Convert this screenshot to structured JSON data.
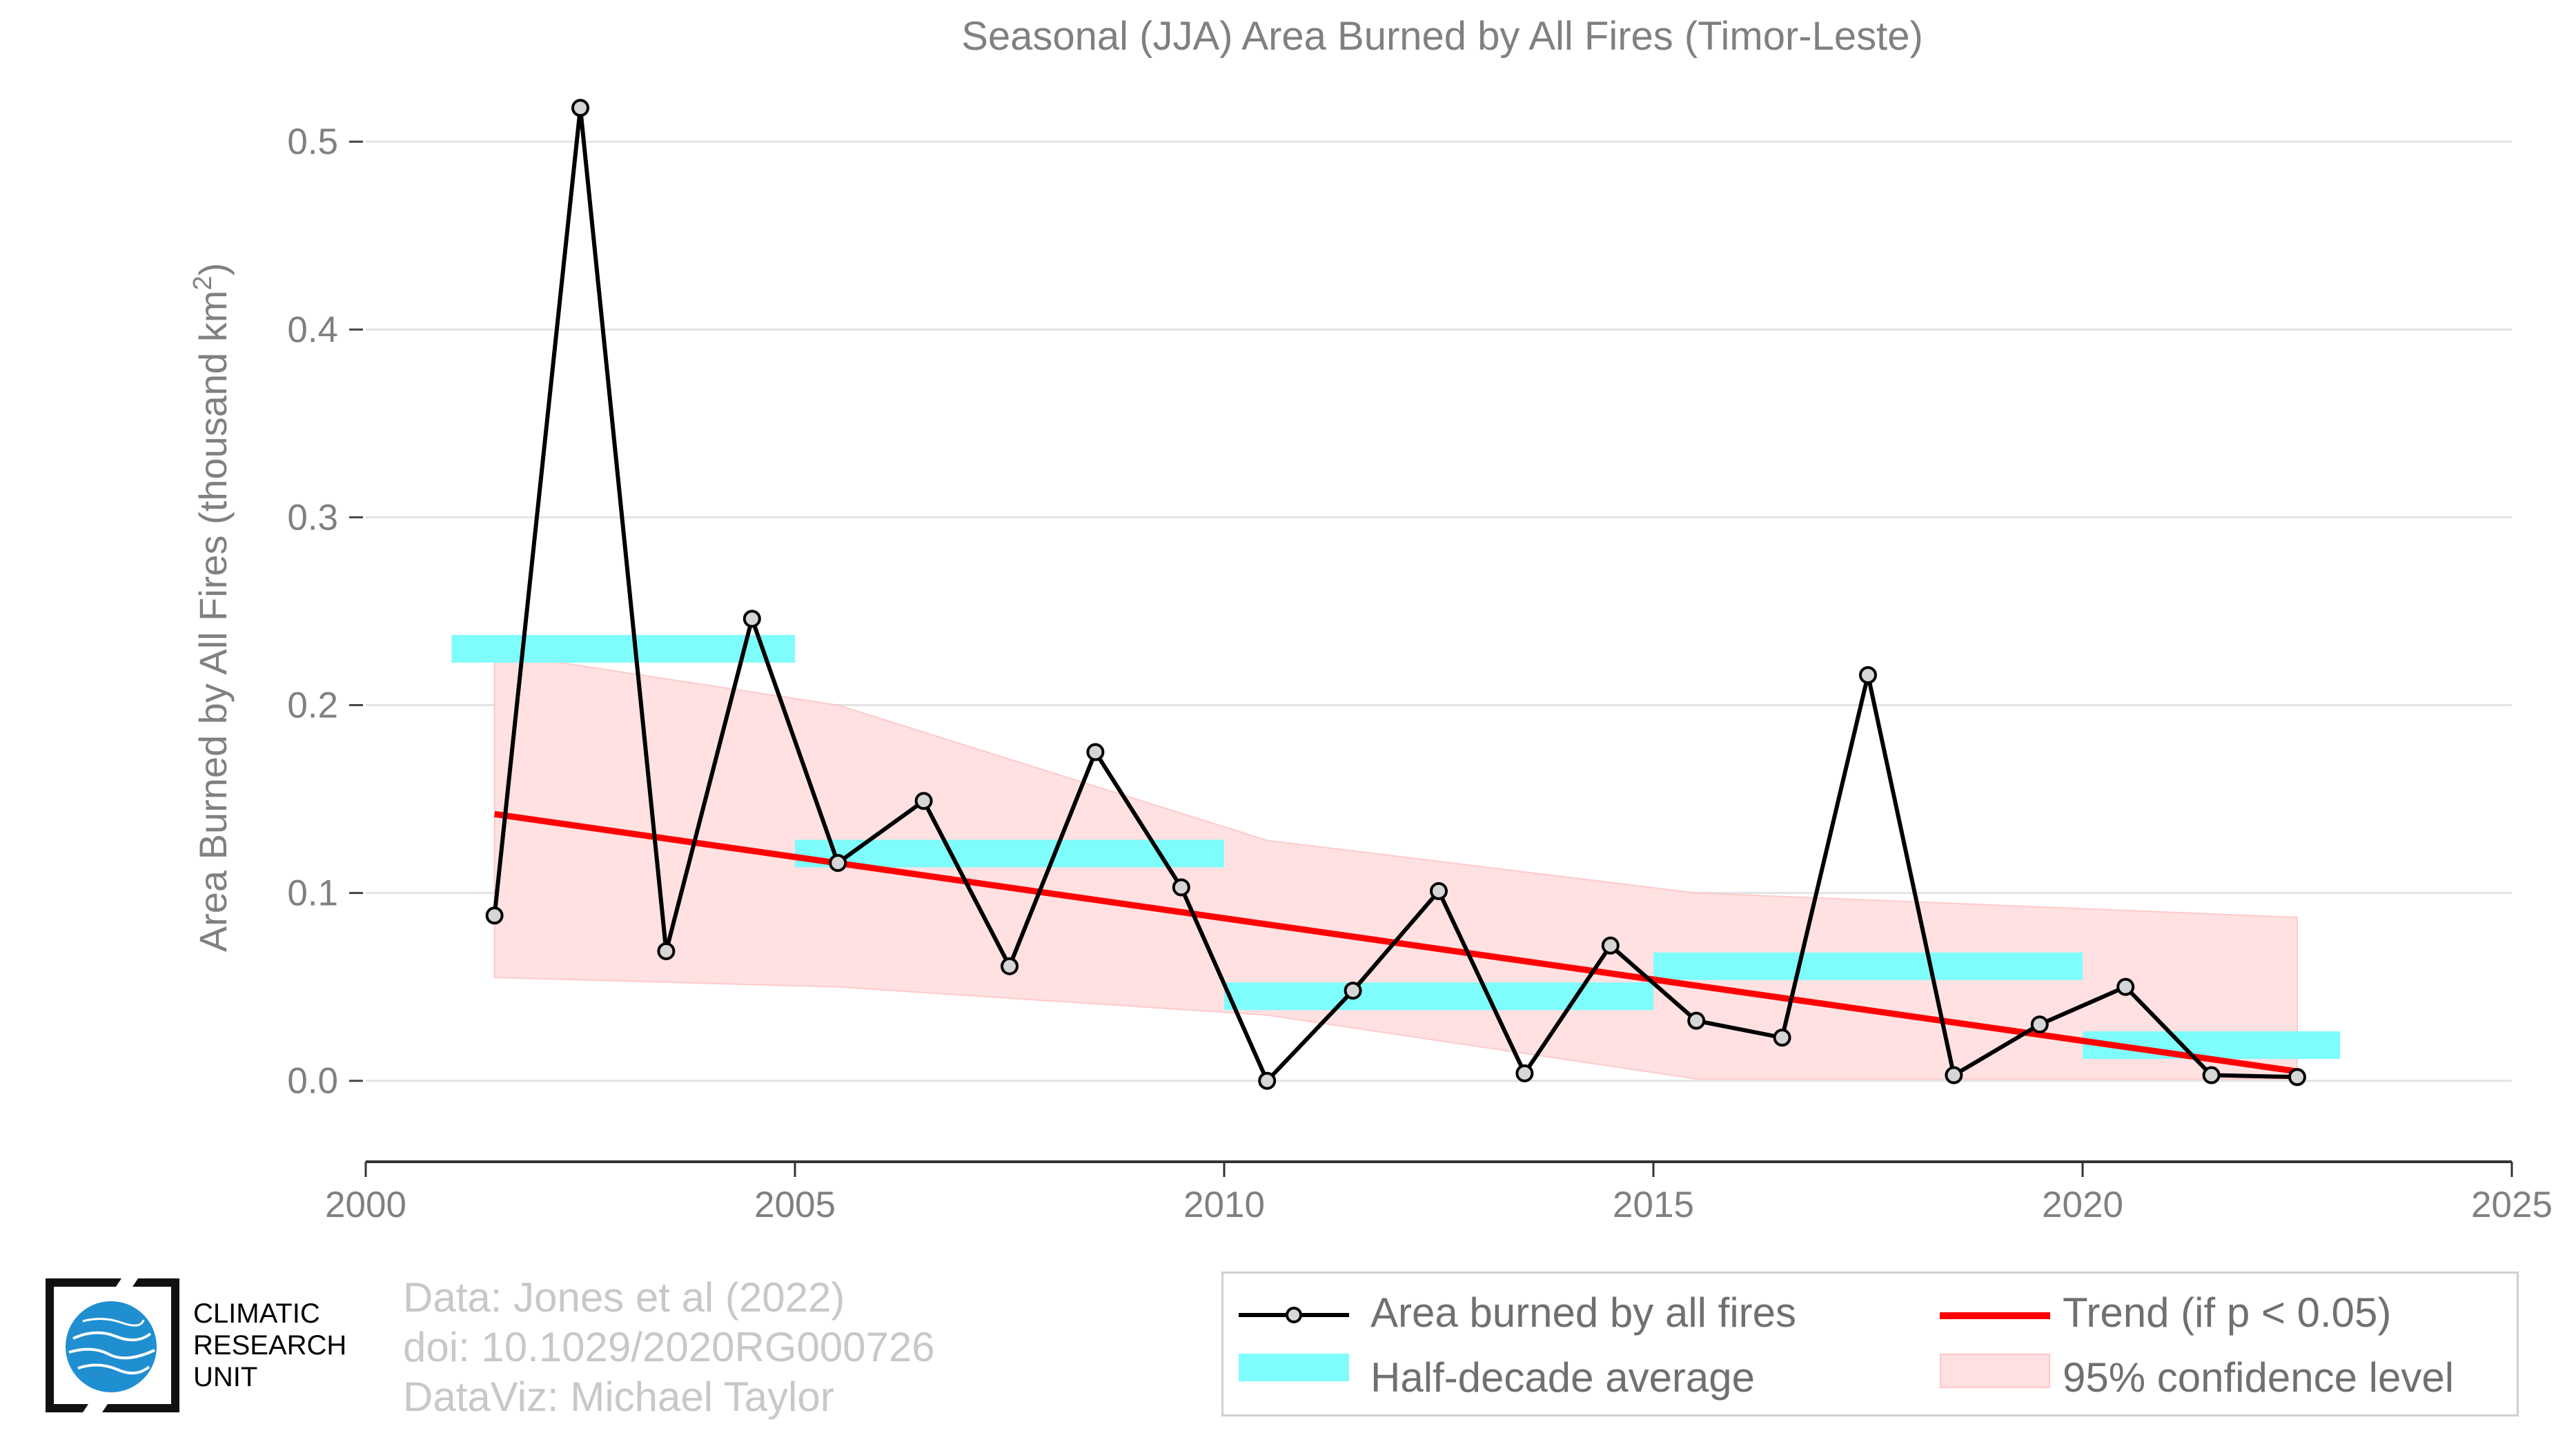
{
  "chart_data": {
    "type": "line",
    "title": "Seasonal (JJA) Area Burned by All Fires (Timor-Leste)",
    "ylabel": "Area Burned by All Fires (thousand km",
    "ylabel_sup": "2",
    "ylabel_close": ")",
    "xlabel": "",
    "xlim": [
      2000,
      2025
    ],
    "ylim": [
      -0.042,
      0.535
    ],
    "xticks": [
      2000,
      2005,
      2010,
      2015,
      2020,
      2025
    ],
    "xtick_labels": [
      "2000",
      "2005",
      "2010",
      "2015",
      "2020",
      "2025"
    ],
    "yticks": [
      0.0,
      0.1,
      0.2,
      0.3,
      0.4,
      0.5
    ],
    "ytick_labels": [
      "0.0",
      "0.1",
      "0.2",
      "0.3",
      "0.4",
      "0.5"
    ],
    "grid": "horizontal",
    "legend_position": "bottom-right",
    "series": [
      {
        "name": "Area burned by all fires",
        "color": "#000000",
        "x": [
          2001.5,
          2002.5,
          2003.5,
          2004.5,
          2005.5,
          2006.5,
          2007.5,
          2008.5,
          2009.5,
          2010.5,
          2011.5,
          2012.5,
          2013.5,
          2014.5,
          2015.5,
          2016.5,
          2017.5,
          2018.5,
          2019.5,
          2020.5,
          2021.5,
          2022.5
        ],
        "values": [
          0.088,
          0.518,
          0.069,
          0.246,
          0.116,
          0.149,
          0.061,
          0.175,
          0.103,
          0.0,
          0.048,
          0.101,
          0.004,
          0.072,
          0.032,
          0.023,
          0.216,
          0.003,
          0.03,
          0.05,
          0.003,
          0.002
        ]
      },
      {
        "name": "Half-decade average",
        "color": "#7ffcfc",
        "segments": [
          {
            "x0": 2001.0,
            "x1": 2005.0,
            "value": 0.23
          },
          {
            "x0": 2005.0,
            "x1": 2010.0,
            "value": 0.121
          },
          {
            "x0": 2010.0,
            "x1": 2015.0,
            "value": 0.045
          },
          {
            "x0": 2015.0,
            "x1": 2020.0,
            "value": 0.061
          },
          {
            "x0": 2020.0,
            "x1": 2023.0,
            "value": 0.019
          }
        ]
      },
      {
        "name": "Trend (if p < 0.05)",
        "color": "#ff0000",
        "x": [
          2001.5,
          2022.5
        ],
        "values": [
          0.142,
          0.005
        ]
      },
      {
        "name": "95% confidence level",
        "color": "#ffe0e0",
        "x": [
          2001.5,
          2005.5,
          2010.5,
          2015.5,
          2022.5
        ],
        "upper": [
          0.228,
          0.2,
          0.128,
          0.1,
          0.087
        ],
        "lower": [
          0.055,
          0.05,
          0.035,
          0.001,
          0.001
        ]
      }
    ]
  },
  "credits": {
    "line1": "Data: Jones et al (2022)",
    "line2": "doi: 10.1029/2020RG000726",
    "line3": "DataViz: Michael Taylor"
  },
  "logo": {
    "line1": "CLIMATIC",
    "line2": "RESEARCH",
    "line3": "UNIT"
  }
}
